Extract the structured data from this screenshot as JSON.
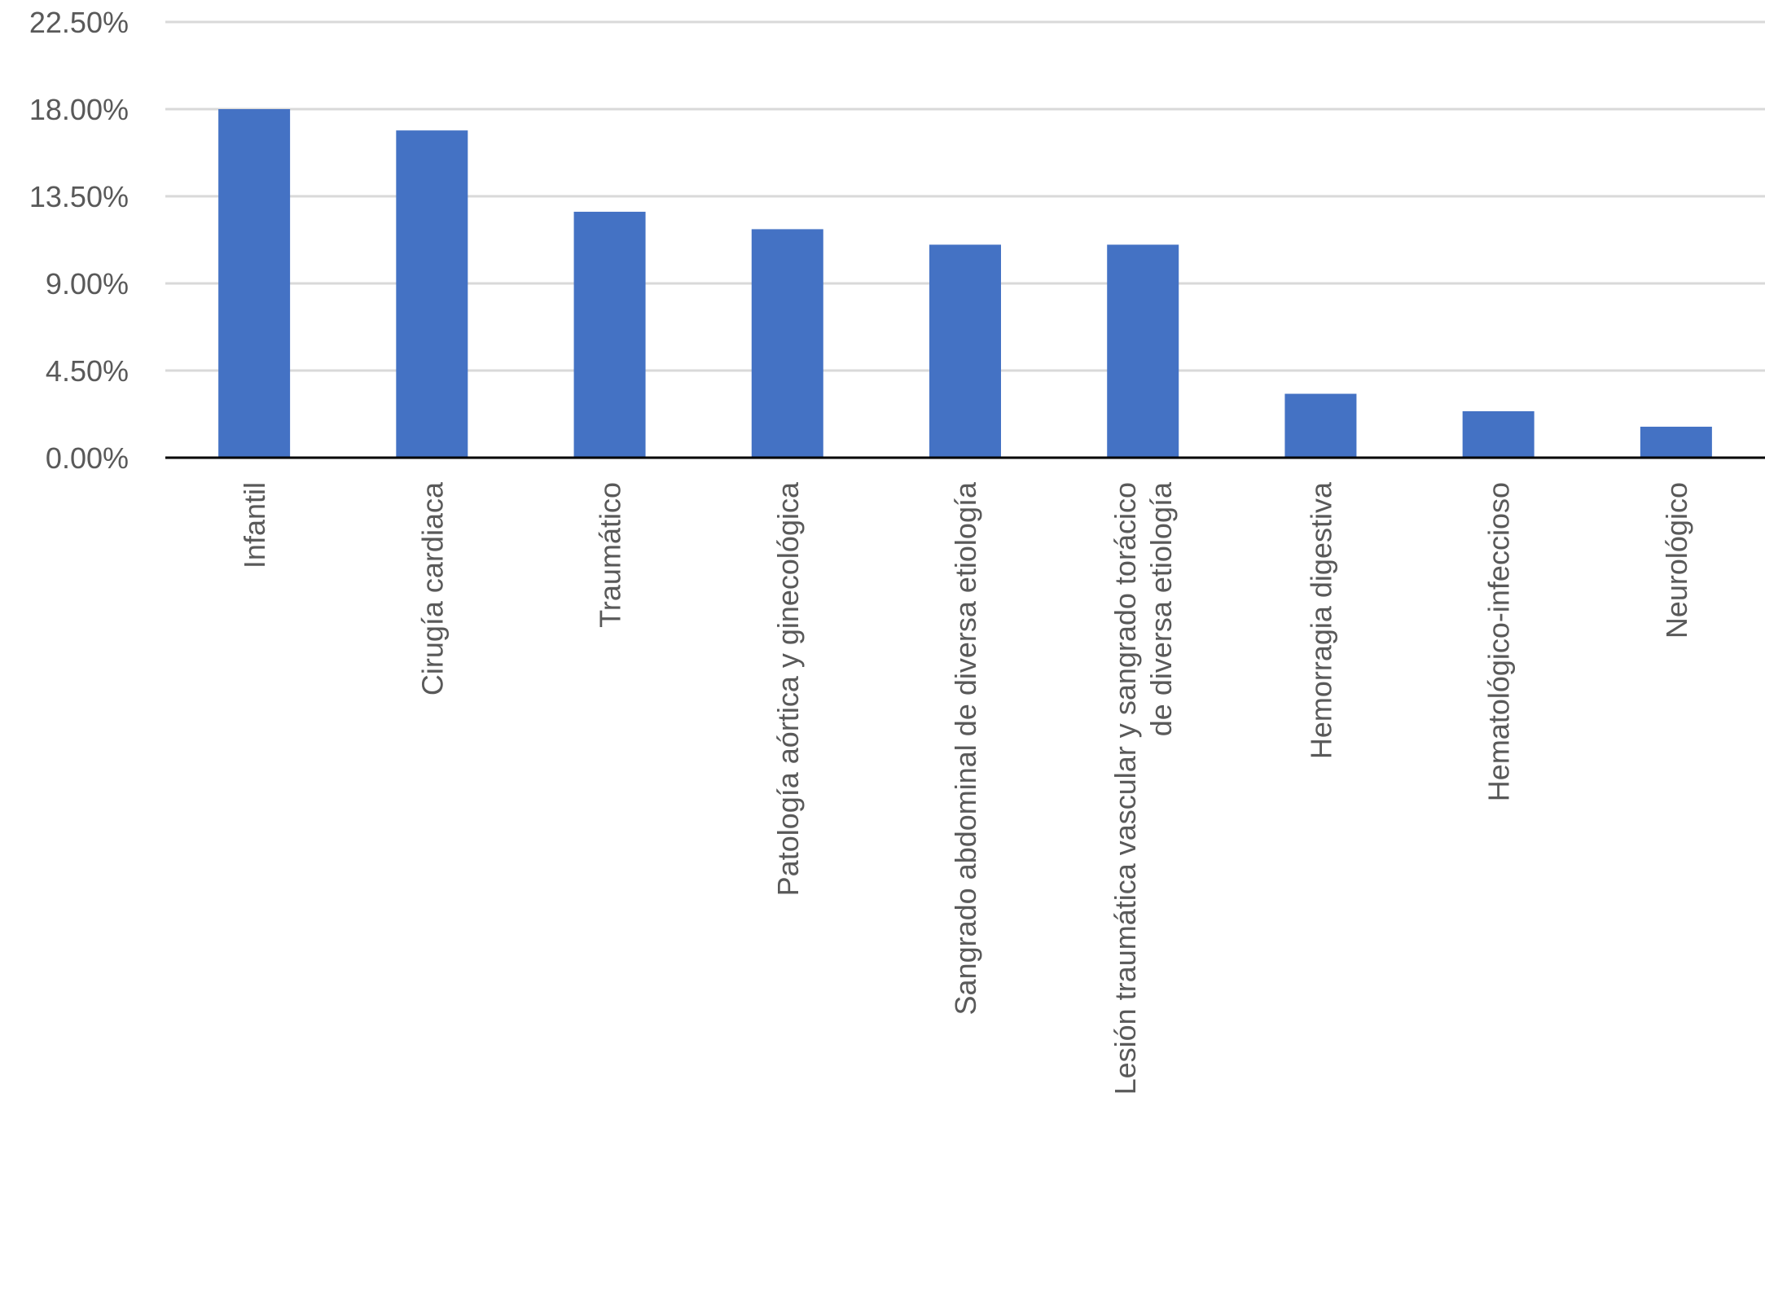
{
  "chart_data": {
    "type": "bar",
    "categories": [
      [
        "Infantil"
      ],
      [
        "Cirugía cardiaca"
      ],
      [
        "Traumático"
      ],
      [
        "Patología aórtica y ginecológica"
      ],
      [
        "Sangrado abdominal de diversa etiología"
      ],
      [
        "Lesión traumática vascular y sangrado torácico",
        "de diversa etiología"
      ],
      [
        "Hemorragia digestiva"
      ],
      [
        "Hematológico-infeccioso"
      ],
      [
        "Neurológico"
      ]
    ],
    "values": [
      18.0,
      16.9,
      12.7,
      11.8,
      11.0,
      11.0,
      3.3,
      2.4,
      1.6
    ],
    "ylim": [
      0,
      22.5
    ],
    "yticks": [
      0,
      4.5,
      9,
      13.5,
      18,
      22.5
    ],
    "ytick_labels": [
      "0.00%",
      "4.50%",
      "9.00%",
      "13.50%",
      "18.00%",
      "22.50%"
    ],
    "title": "",
    "xlabel": "",
    "ylabel": "",
    "grid": true,
    "bar_color": "#4472c4"
  }
}
